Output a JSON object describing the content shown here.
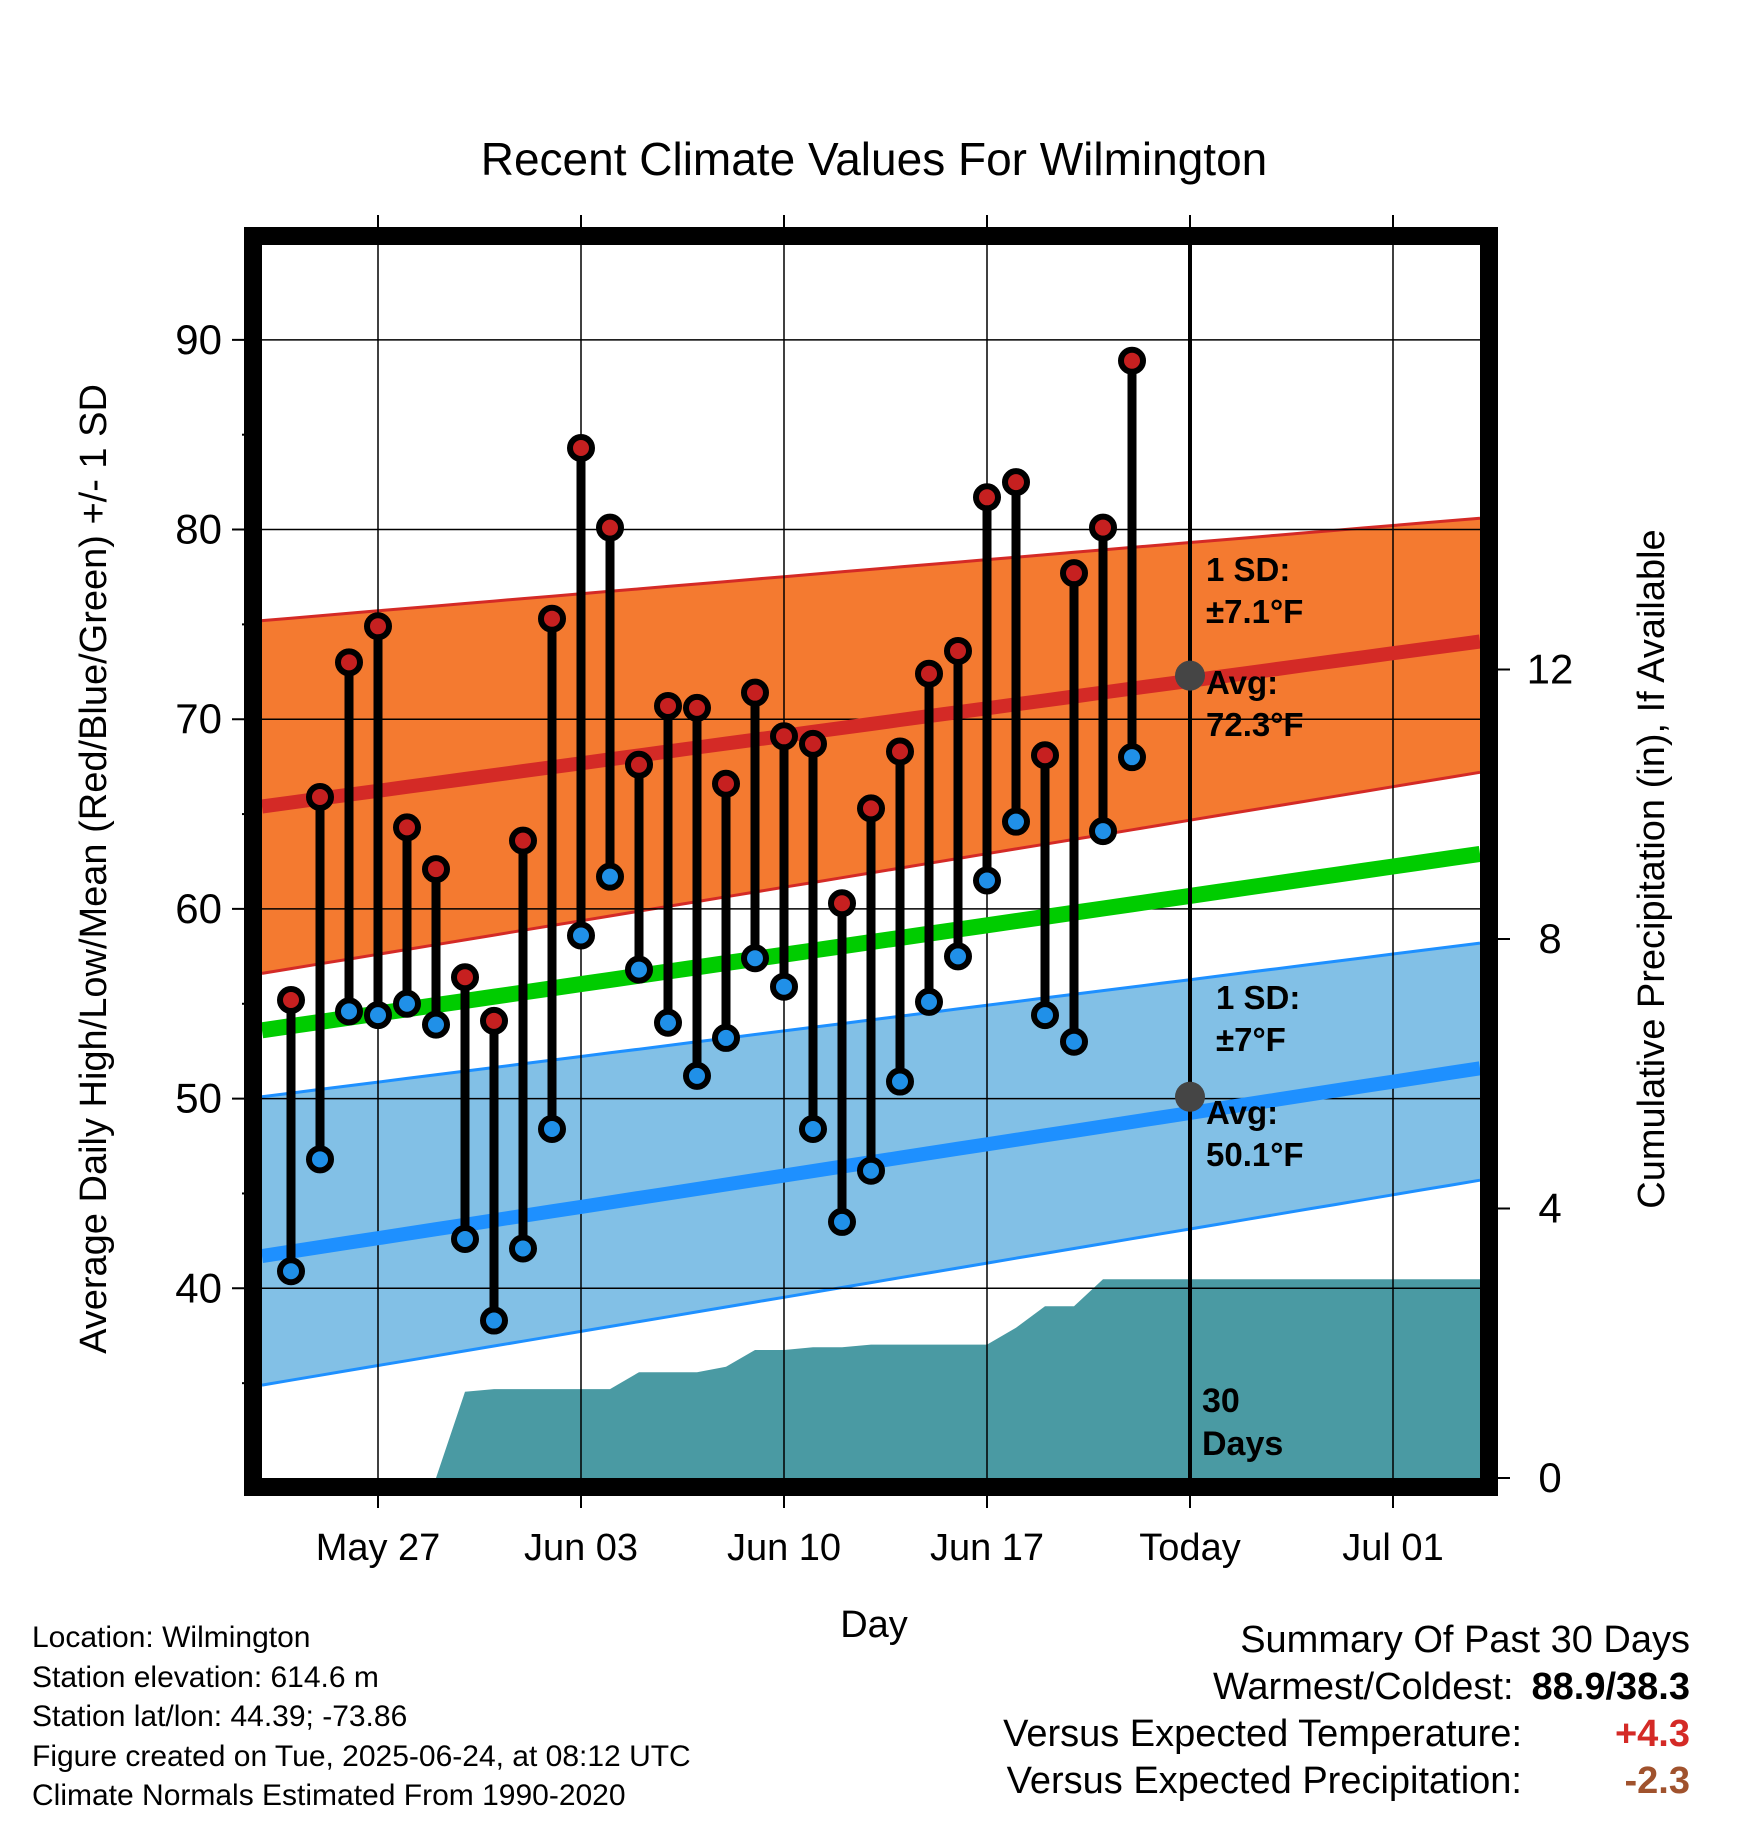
{
  "chart_data": {
    "type": "line",
    "title": "Recent Climate Values For Wilmington",
    "xlabel": "Day",
    "ylabel": "Average Daily High/Low/Mean (Red/Blue/Green) +/- 1 SD",
    "y2label": "Cumulative Precipitation (in), If Available",
    "ylim": [
      30,
      95
    ],
    "y2lim": [
      0,
      18.3
    ],
    "y_ticks": [
      "40",
      "50",
      "60",
      "70",
      "80",
      "90"
    ],
    "y2_ticks": [
      "0",
      "4",
      "8",
      "12"
    ],
    "x_ticks": [
      {
        "date": "2025-05-27",
        "label": "May 27"
      },
      {
        "date": "2025-06-03",
        "label": "Jun 03"
      },
      {
        "date": "2025-06-10",
        "label": "Jun 10"
      },
      {
        "date": "2025-06-17",
        "label": "Jun 17"
      },
      {
        "date": "2025-06-24",
        "label": "Today"
      },
      {
        "date": "2025-07-01",
        "label": "Jul 01"
      }
    ],
    "xlim": [
      "2025-05-23",
      "2025-07-04"
    ],
    "today": "2025-06-24",
    "grid": true,
    "normals": {
      "dates": [
        "2025-05-23",
        "2025-07-04"
      ],
      "high_avg": [
        65.4,
        74.1
      ],
      "high_plus_sd": [
        75.2,
        80.6
      ],
      "high_minus_sd": [
        56.6,
        67.2
      ],
      "mean_avg": [
        53.6,
        62.9
      ],
      "low_avg": [
        41.7,
        51.6
      ],
      "low_plus_sd": [
        50.1,
        58.2
      ],
      "low_minus_sd": [
        34.9,
        45.7
      ]
    },
    "today_high_avg": 72.3,
    "today_low_avg": 50.1,
    "high_annotation": {
      "sd_label": "1 SD:",
      "sd_value": "±7.1°F",
      "avg_label": "Avg:",
      "avg_value": "72.3°F"
    },
    "low_annotation": {
      "sd_label": "1 SD:",
      "sd_value": "±7°F",
      "avg_label": "Avg:",
      "avg_value": "50.1°F"
    },
    "precip_label_1": "30",
    "precip_label_2": "Days",
    "days": [
      {
        "date": "2025-05-24",
        "high": 55.2,
        "low": 40.9
      },
      {
        "date": "2025-05-25",
        "high": 65.9,
        "low": 46.8
      },
      {
        "date": "2025-05-26",
        "high": 73.0,
        "low": 54.6
      },
      {
        "date": "2025-05-27",
        "high": 74.9,
        "low": 54.4
      },
      {
        "date": "2025-05-28",
        "high": 64.3,
        "low": 55.0
      },
      {
        "date": "2025-05-29",
        "high": 62.1,
        "low": 53.9
      },
      {
        "date": "2025-05-30",
        "high": 56.4,
        "low": 42.6
      },
      {
        "date": "2025-05-31",
        "high": 54.1,
        "low": 38.3
      },
      {
        "date": "2025-06-01",
        "high": 63.6,
        "low": 42.1
      },
      {
        "date": "2025-06-02",
        "high": 75.3,
        "low": 48.4
      },
      {
        "date": "2025-06-03",
        "high": 84.3,
        "low": 58.6
      },
      {
        "date": "2025-06-04",
        "high": 80.1,
        "low": 61.7
      },
      {
        "date": "2025-06-05",
        "high": 67.6,
        "low": 56.8
      },
      {
        "date": "2025-06-06",
        "high": 70.7,
        "low": 54.0
      },
      {
        "date": "2025-06-07",
        "high": 70.6,
        "low": 51.2
      },
      {
        "date": "2025-06-08",
        "high": 66.6,
        "low": 53.2
      },
      {
        "date": "2025-06-09",
        "high": 71.4,
        "low": 57.4
      },
      {
        "date": "2025-06-10",
        "high": 69.1,
        "low": 55.9
      },
      {
        "date": "2025-06-11",
        "high": 68.7,
        "low": 48.4
      },
      {
        "date": "2025-06-12",
        "high": 60.3,
        "low": 43.5
      },
      {
        "date": "2025-06-13",
        "high": 65.3,
        "low": 46.2
      },
      {
        "date": "2025-06-14",
        "high": 68.3,
        "low": 50.9
      },
      {
        "date": "2025-06-15",
        "high": 72.4,
        "low": 55.1
      },
      {
        "date": "2025-06-16",
        "high": 73.6,
        "low": 57.5
      },
      {
        "date": "2025-06-17",
        "high": 81.7,
        "low": 61.5
      },
      {
        "date": "2025-06-18",
        "high": 82.5,
        "low": 64.6
      },
      {
        "date": "2025-06-19",
        "high": 68.1,
        "low": 54.4
      },
      {
        "date": "2025-06-20",
        "high": 77.7,
        "low": 53.0
      },
      {
        "date": "2025-06-21",
        "high": 80.1,
        "low": 64.1
      },
      {
        "date": "2025-06-22",
        "high": 88.9,
        "low": 68.0
      }
    ],
    "precipitation": [
      {
        "date": "2025-05-29",
        "value": 0.0
      },
      {
        "date": "2025-05-30",
        "value": 1.28
      },
      {
        "date": "2025-05-31",
        "value": 1.32
      },
      {
        "date": "2025-06-01",
        "value": 1.32
      },
      {
        "date": "2025-06-02",
        "value": 1.32
      },
      {
        "date": "2025-06-03",
        "value": 1.32
      },
      {
        "date": "2025-06-04",
        "value": 1.32
      },
      {
        "date": "2025-06-05",
        "value": 1.57
      },
      {
        "date": "2025-06-06",
        "value": 1.57
      },
      {
        "date": "2025-06-07",
        "value": 1.57
      },
      {
        "date": "2025-06-08",
        "value": 1.65
      },
      {
        "date": "2025-06-09",
        "value": 1.9
      },
      {
        "date": "2025-06-10",
        "value": 1.9
      },
      {
        "date": "2025-06-11",
        "value": 1.94
      },
      {
        "date": "2025-06-12",
        "value": 1.94
      },
      {
        "date": "2025-06-13",
        "value": 1.98
      },
      {
        "date": "2025-06-14",
        "value": 1.98
      },
      {
        "date": "2025-06-15",
        "value": 1.98
      },
      {
        "date": "2025-06-16",
        "value": 1.98
      },
      {
        "date": "2025-06-17",
        "value": 1.98
      },
      {
        "date": "2025-06-18",
        "value": 2.23
      },
      {
        "date": "2025-06-19",
        "value": 2.55
      },
      {
        "date": "2025-06-20",
        "value": 2.55
      },
      {
        "date": "2025-06-21",
        "value": 2.95
      },
      {
        "date": "2025-06-22",
        "value": 2.95
      },
      {
        "date": "2025-07-04",
        "value": 2.95
      }
    ],
    "colors": {
      "high_band": "#f47a30",
      "high_line": "#d42a26",
      "high_point": "#c62020",
      "mean_line": "#00cc00",
      "low_band": "#82c0e6",
      "low_line": "#1e90ff",
      "low_point": "#2090e8",
      "precip": "#4a9aa3",
      "avg_marker": "#454545",
      "annotation_text": "#555555"
    }
  },
  "meta": {
    "location": "Location: Wilmington",
    "elevation": "Station elevation: 614.6 m",
    "latlon": "Station lat/lon: 44.39; -73.86",
    "created": "Figure created on Tue, 2025-06-24, at 08:12 UTC",
    "normals": "Climate Normals Estimated From 1990-2020"
  },
  "summary": {
    "title": "Summary Of Past 30 Days",
    "warmest_coldest_label": "Warmest/Coldest:",
    "warmest_coldest_value": "88.9/38.3",
    "temp_label": "Versus Expected Temperature:",
    "temp_value": "+4.3",
    "temp_color": "#d42a26",
    "precip_label": "Versus Expected Precipitation:",
    "precip_value": "-2.3",
    "precip_color": "#a0522d"
  }
}
